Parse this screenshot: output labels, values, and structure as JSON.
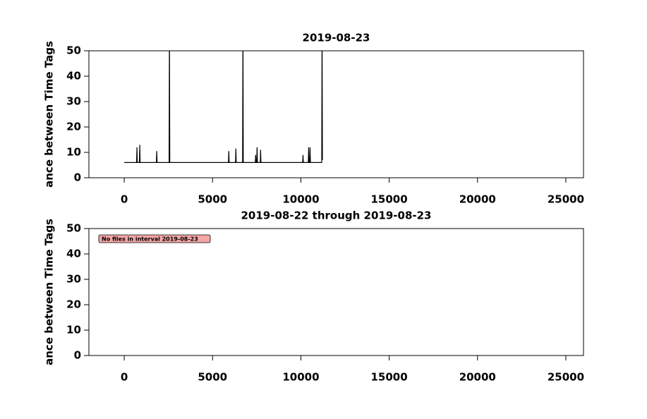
{
  "chart_data": [
    {
      "type": "line",
      "title": "2019-08-23",
      "y_label": "ance between Time Tags",
      "xlim": [
        -2000,
        26000
      ],
      "xticks": [
        0,
        5000,
        10000,
        15000,
        20000,
        25000
      ],
      "ylim": [
        0,
        50
      ],
      "yticks": [
        0,
        10,
        20,
        30,
        40,
        50
      ],
      "x": [
        0,
        700,
        720,
        740,
        860,
        880,
        900,
        1820,
        1840,
        1860,
        2540,
        2560,
        2580,
        5900,
        5920,
        5940,
        6300,
        6320,
        6340,
        6700,
        6720,
        6740,
        7420,
        7440,
        7460,
        7500,
        7520,
        7540,
        7700,
        7720,
        7740,
        10100,
        10120,
        10140,
        10420,
        10440,
        10460,
        10500,
        10520,
        10540,
        11180,
        11200,
        11220
      ],
      "series": [
        {
          "name": "Distance between Time Tags",
          "color": "#000000",
          "values": [
            6,
            6,
            12,
            6,
            6,
            13,
            6,
            6,
            10.5,
            6,
            6,
            60,
            6,
            6,
            10.5,
            6,
            6,
            11.5,
            6,
            6,
            60,
            6,
            6,
            9,
            6,
            6,
            12,
            6,
            6,
            11,
            6,
            6,
            9,
            6,
            6,
            12,
            6,
            6,
            12,
            6,
            6,
            60,
            7
          ]
        }
      ]
    },
    {
      "type": "line",
      "title": "2019-08-22 through 2019-08-23",
      "y_label": "ance between Time Tags",
      "xlim": [
        -2000,
        26000
      ],
      "xticks": [
        0,
        5000,
        10000,
        15000,
        20000,
        25000
      ],
      "ylim": [
        0,
        50
      ],
      "yticks": [
        0,
        10,
        20,
        30,
        40,
        50
      ],
      "annotation": "No files in interval 2019-08-23"
    }
  ]
}
